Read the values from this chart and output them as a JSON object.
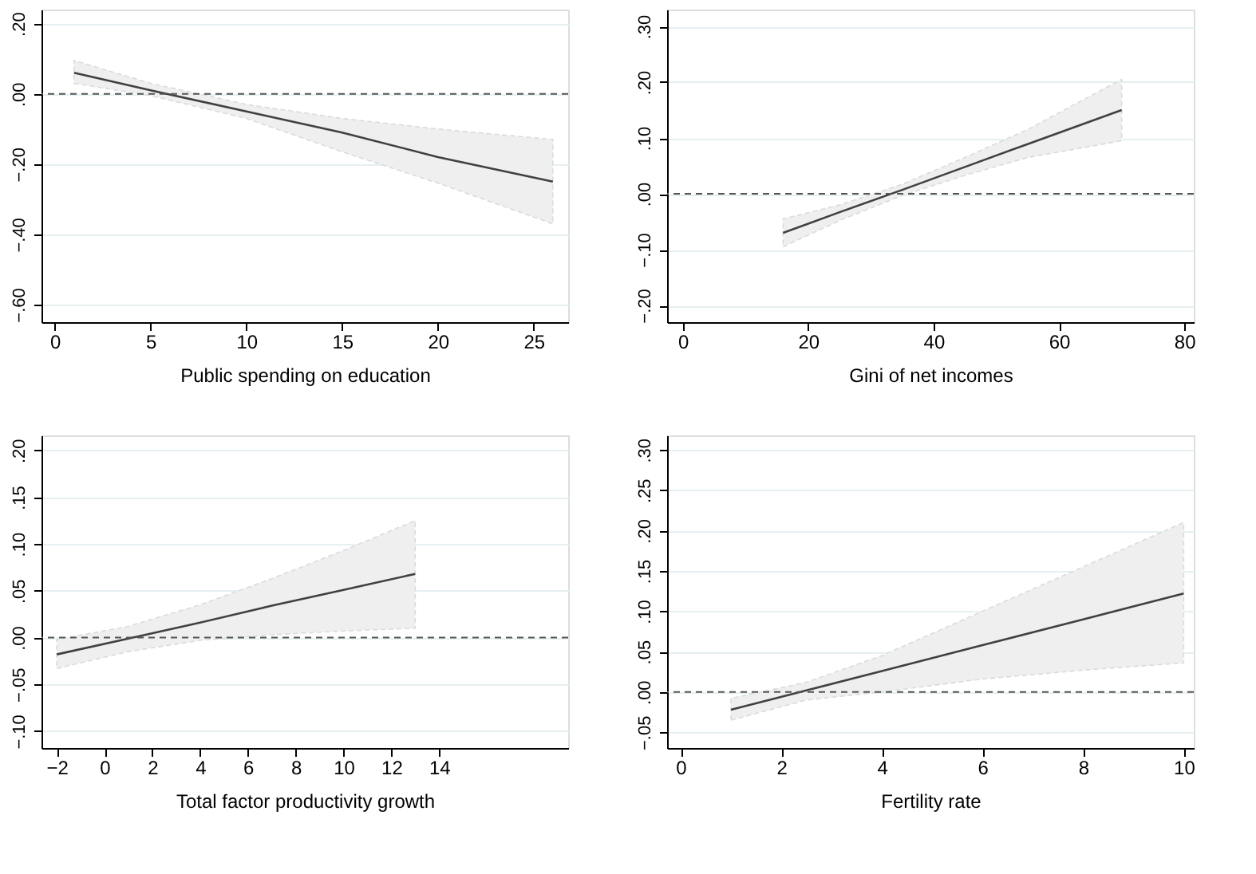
{
  "chart_data": [
    {
      "type": "line",
      "xlabel": "Public spending on education",
      "xlim": [
        -0.7,
        26.8
      ],
      "xticks": [
        0,
        5,
        10,
        15,
        20,
        25
      ],
      "ylim": [
        -0.65,
        0.24
      ],
      "yticks": [
        {
          "value": 0.2,
          "label": ".20"
        },
        {
          "value": 0,
          "label": ".00"
        },
        {
          "value": -0.2,
          "label": "−.20"
        },
        {
          "value": -0.4,
          "label": "−.40"
        },
        {
          "value": -0.6,
          "label": "−.60"
        }
      ],
      "grid": "y",
      "marker": "none",
      "line_style": "solid",
      "series": [
        {
          "color": "#404040",
          "x": [
            1,
            5,
            10,
            15,
            20,
            26
          ],
          "values": [
            0.06,
            0.01,
            -0.05,
            -0.11,
            -0.18,
            -0.25
          ],
          "lower": [
            0.03,
            -0.005,
            -0.07,
            -0.165,
            -0.254,
            -0.37
          ],
          "upper": [
            0.095,
            0.03,
            -0.03,
            -0.07,
            -0.1,
            -0.13
          ]
        }
      ],
      "ref_lines": [
        {
          "axis": "y",
          "value": 0,
          "color": "#555555",
          "line_style": "dashed"
        }
      ]
    },
    {
      "type": "line",
      "xlabel": "Gini of net incomes",
      "xlim": [
        -2.5,
        81.5
      ],
      "xticks": [
        0,
        20,
        40,
        60,
        80
      ],
      "ylim": [
        -0.23,
        0.33
      ],
      "yticks": [
        {
          "value": 0.3,
          "label": ".30"
        },
        {
          "value": 0.2,
          "label": ".20"
        },
        {
          "value": 0.1,
          "label": ".10"
        },
        {
          "value": 0,
          "label": ".00"
        },
        {
          "value": -0.1,
          "label": "−.10"
        },
        {
          "value": -0.2,
          "label": "−.20"
        }
      ],
      "grid": "y",
      "marker": "none",
      "line_style": "solid",
      "series": [
        {
          "color": "#404040",
          "x": [
            16,
            25,
            35,
            45,
            55,
            70
          ],
          "values": [
            -0.07,
            -0.033,
            0.007,
            0.048,
            0.089,
            0.15
          ],
          "lower": [
            -0.095,
            -0.048,
            -0.003,
            0.033,
            0.065,
            0.095
          ],
          "upper": [
            -0.045,
            -0.02,
            0.017,
            0.065,
            0.115,
            0.205
          ]
        }
      ],
      "ref_lines": [
        {
          "axis": "y",
          "value": 0,
          "color": "#555555",
          "line_style": "dashed"
        }
      ]
    },
    {
      "type": "line",
      "xlabel": "Total factor productivity growth",
      "xlim": [
        -2.64,
        19.4
      ],
      "xticks": [
        -2,
        0,
        2,
        4,
        6,
        8,
        10,
        12,
        14
      ],
      "ylim": [
        -0.118,
        0.216
      ],
      "yticks": [
        {
          "value": 0.2,
          "label": ".20"
        },
        {
          "value": 0.15,
          "label": ".15"
        },
        {
          "value": 0.1,
          "label": ".10"
        },
        {
          "value": 0.05,
          "label": ".05"
        },
        {
          "value": 0,
          "label": ".00"
        },
        {
          "value": -0.05,
          "label": "−.05"
        },
        {
          "value": -0.1,
          "label": "−.10"
        }
      ],
      "grid": "y",
      "marker": "none",
      "line_style": "solid",
      "series": [
        {
          "color": "#404040",
          "x": [
            -2,
            1,
            4,
            7,
            10,
            13
          ],
          "values": [
            -0.018,
            -0.001,
            0.016,
            0.034,
            0.051,
            0.068
          ],
          "lower": [
            -0.033,
            -0.015,
            -0.003,
            0.003,
            0.007,
            0.01
          ],
          "upper": [
            -0.002,
            0.012,
            0.035,
            0.063,
            0.093,
            0.125
          ]
        }
      ],
      "ref_lines": [
        {
          "axis": "y",
          "value": 0,
          "color": "#555555",
          "line_style": "dashed"
        }
      ]
    },
    {
      "type": "line",
      "xlabel": "Fertility rate",
      "xlim": [
        -0.27,
        10.2
      ],
      "xticks": [
        0,
        2,
        4,
        6,
        8,
        10
      ],
      "ylim": [
        -0.0695,
        0.318
      ],
      "yticks": [
        {
          "value": 0.3,
          "label": ".30"
        },
        {
          "value": 0.25,
          "label": ".25"
        },
        {
          "value": 0.2,
          "label": ".20"
        },
        {
          "value": 0.15,
          "label": ".15"
        },
        {
          "value": 0.1,
          "label": ".10"
        },
        {
          "value": 0.05,
          "label": ".05"
        },
        {
          "value": 0,
          "label": ".00"
        },
        {
          "value": -0.05,
          "label": "−.05"
        }
      ],
      "grid": "y",
      "marker": "none",
      "line_style": "solid",
      "series": [
        {
          "color": "#404040",
          "x": [
            1,
            2.5,
            4,
            6,
            8,
            10
          ],
          "values": [
            -0.022,
            0.002,
            0.026,
            0.058,
            0.09,
            0.122
          ],
          "lower": [
            -0.035,
            -0.01,
            0.0,
            0.016,
            0.027,
            0.036
          ],
          "upper": [
            -0.008,
            0.012,
            0.045,
            0.1,
            0.155,
            0.21
          ]
        }
      ],
      "ref_lines": [
        {
          "axis": "y",
          "value": 0,
          "color": "#555555",
          "line_style": "dashed"
        }
      ]
    }
  ]
}
